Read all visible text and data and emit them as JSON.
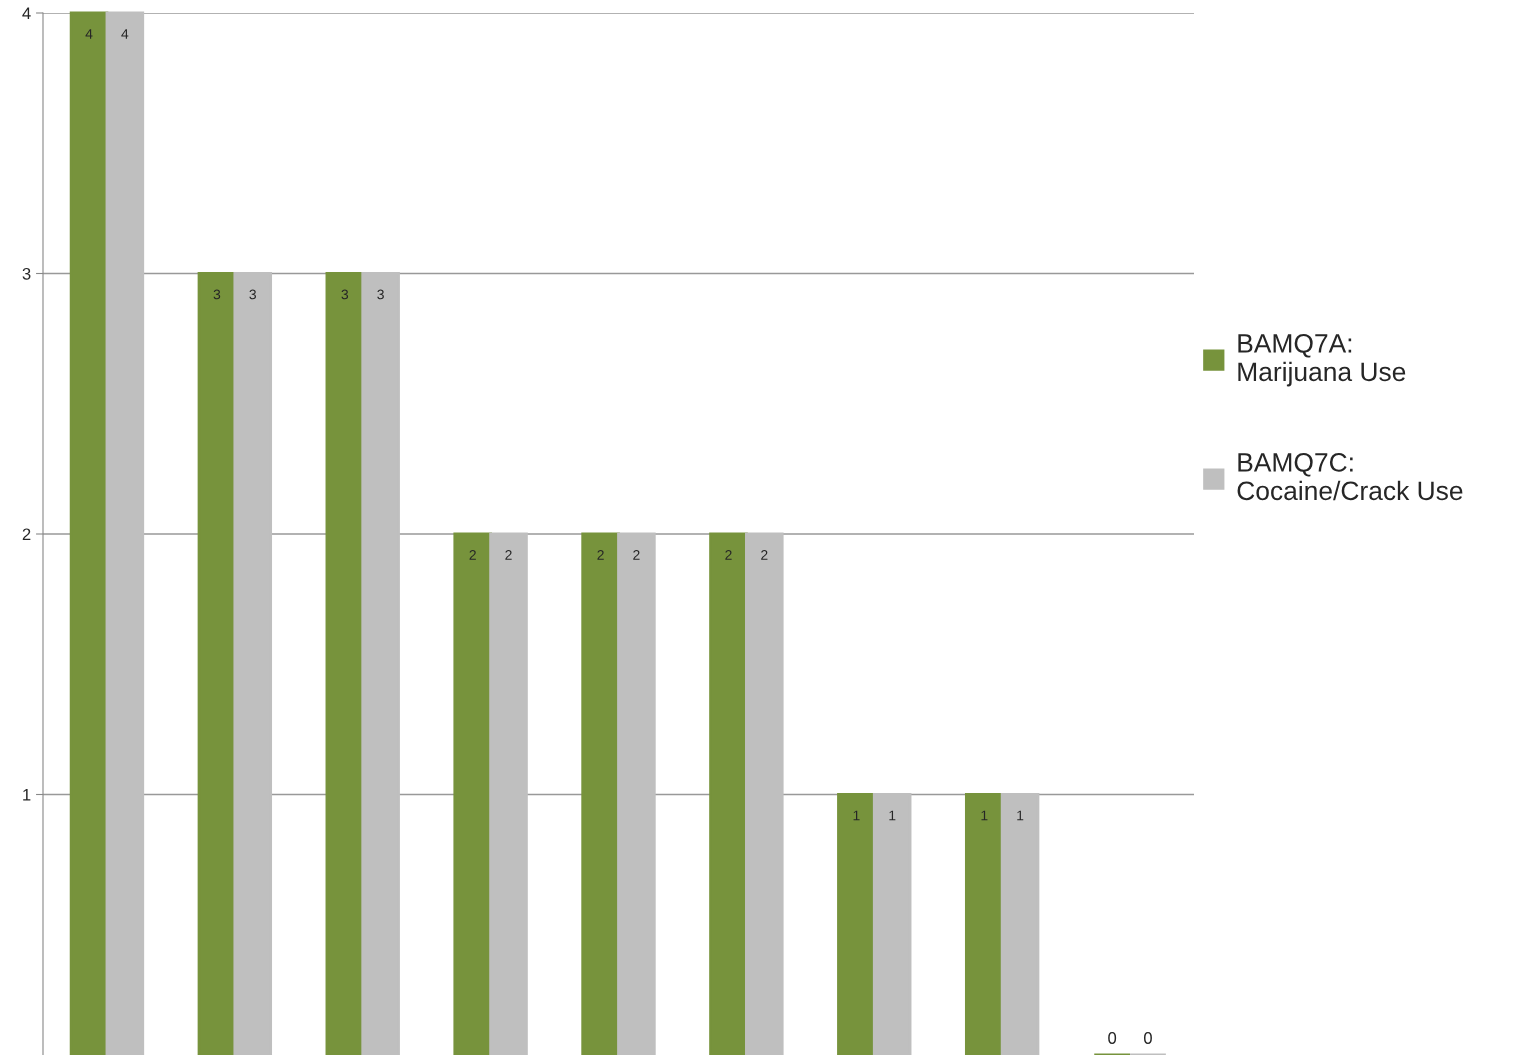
{
  "chart_data": {
    "type": "bar",
    "categories": [
      null,
      null,
      null,
      null,
      null,
      null,
      null,
      null,
      null
    ],
    "series": [
      {
        "name": "BAMQ7A:\nMarijuana Use",
        "color": "#77933c",
        "values": [
          4,
          3,
          3,
          2,
          2,
          2,
          1,
          1,
          0
        ]
      },
      {
        "name": "BAMQ7C:\nCocaine/Crack Use",
        "color": "#bfbfbf",
        "values": [
          4,
          3,
          3,
          2,
          2,
          2,
          1,
          1,
          0
        ]
      }
    ],
    "ylim": [
      0,
      4
    ],
    "yticks": [
      1,
      2,
      3,
      4
    ],
    "grid": "y",
    "legend": "right",
    "data_labels": true
  }
}
